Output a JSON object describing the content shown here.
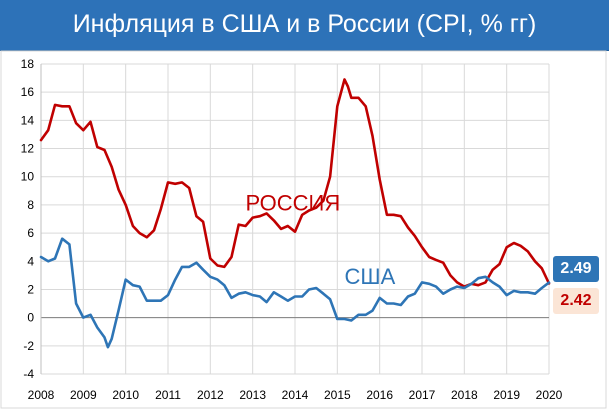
{
  "title": "Инфляция в США и в России (CPI, % гг)",
  "colors": {
    "russia": "#c00000",
    "usa": "#2e75b6",
    "title_bg": "#2d72b8",
    "grid": "#d9d9d9"
  },
  "chart_data": {
    "type": "line",
    "title": "Инфляция в США и в России (CPI, % гг)",
    "xlabel": "",
    "ylabel": "",
    "xlim": [
      2008,
      2020
    ],
    "ylim": [
      -4,
      18
    ],
    "x_ticks": [
      "2008",
      "2009",
      "2010",
      "2011",
      "2012",
      "2013",
      "2014",
      "2015",
      "2016",
      "2017",
      "2018",
      "2019",
      "2020"
    ],
    "y_ticks": [
      "-4",
      "-2",
      "0",
      "2",
      "4",
      "6",
      "8",
      "10",
      "12",
      "14",
      "16",
      "18"
    ],
    "grid": true,
    "series": [
      {
        "name": "РОССИЯ",
        "color": "#c00000",
        "x": [
          2008.0,
          2008.17,
          2008.33,
          2008.5,
          2008.67,
          2008.83,
          2009.0,
          2009.17,
          2009.33,
          2009.5,
          2009.67,
          2009.83,
          2010.0,
          2010.17,
          2010.33,
          2010.5,
          2010.67,
          2010.83,
          2011.0,
          2011.17,
          2011.33,
          2011.5,
          2011.67,
          2011.83,
          2012.0,
          2012.17,
          2012.33,
          2012.5,
          2012.67,
          2012.83,
          2013.0,
          2013.17,
          2013.33,
          2013.5,
          2013.67,
          2013.83,
          2014.0,
          2014.17,
          2014.33,
          2014.5,
          2014.67,
          2014.83,
          2015.0,
          2015.17,
          2015.25,
          2015.33,
          2015.5,
          2015.67,
          2015.83,
          2016.0,
          2016.17,
          2016.33,
          2016.5,
          2016.67,
          2016.83,
          2017.0,
          2017.17,
          2017.33,
          2017.5,
          2017.67,
          2017.83,
          2018.0,
          2018.17,
          2018.33,
          2018.5,
          2018.67,
          2018.83,
          2019.0,
          2019.17,
          2019.33,
          2019.5,
          2019.67,
          2019.83,
          2020.0
        ],
        "values": [
          12.6,
          13.3,
          15.1,
          15.0,
          15.0,
          13.8,
          13.3,
          13.9,
          12.1,
          11.9,
          10.7,
          9.1,
          8.0,
          6.5,
          6.0,
          5.7,
          6.2,
          7.7,
          9.6,
          9.5,
          9.6,
          9.2,
          7.2,
          6.8,
          4.2,
          3.7,
          3.6,
          4.3,
          6.6,
          6.5,
          7.1,
          7.2,
          7.4,
          6.9,
          6.3,
          6.5,
          6.1,
          7.3,
          7.6,
          7.8,
          8.3,
          10.0,
          15.0,
          16.9,
          16.4,
          15.6,
          15.6,
          15.0,
          12.9,
          9.8,
          7.3,
          7.3,
          7.2,
          6.4,
          5.8,
          5.0,
          4.3,
          4.1,
          3.9,
          3.0,
          2.5,
          2.2,
          2.4,
          2.3,
          2.5,
          3.4,
          3.8,
          5.0,
          5.3,
          5.1,
          4.7,
          4.0,
          3.5,
          2.42
        ]
      },
      {
        "name": "США",
        "color": "#2e75b6",
        "x": [
          2008.0,
          2008.17,
          2008.33,
          2008.5,
          2008.67,
          2008.83,
          2009.0,
          2009.17,
          2009.33,
          2009.5,
          2009.58,
          2009.67,
          2009.83,
          2010.0,
          2010.17,
          2010.33,
          2010.5,
          2010.67,
          2010.83,
          2011.0,
          2011.17,
          2011.33,
          2011.5,
          2011.67,
          2011.83,
          2012.0,
          2012.17,
          2012.33,
          2012.5,
          2012.67,
          2012.83,
          2013.0,
          2013.17,
          2013.33,
          2013.5,
          2013.67,
          2013.83,
          2014.0,
          2014.17,
          2014.33,
          2014.5,
          2014.67,
          2014.83,
          2015.0,
          2015.17,
          2015.33,
          2015.5,
          2015.67,
          2015.83,
          2016.0,
          2016.17,
          2016.33,
          2016.5,
          2016.67,
          2016.83,
          2017.0,
          2017.17,
          2017.33,
          2017.5,
          2017.67,
          2017.83,
          2018.0,
          2018.17,
          2018.33,
          2018.5,
          2018.67,
          2018.83,
          2019.0,
          2019.17,
          2019.33,
          2019.5,
          2019.67,
          2019.83,
          2020.0
        ],
        "values": [
          4.3,
          4.0,
          4.2,
          5.6,
          5.2,
          1.0,
          0.0,
          0.2,
          -0.7,
          -1.4,
          -2.1,
          -1.5,
          0.5,
          2.7,
          2.3,
          2.2,
          1.2,
          1.2,
          1.2,
          1.6,
          2.7,
          3.6,
          3.6,
          3.9,
          3.4,
          2.9,
          2.7,
          2.3,
          1.4,
          1.7,
          1.8,
          1.6,
          1.5,
          1.1,
          1.8,
          1.5,
          1.2,
          1.5,
          1.5,
          2.0,
          2.1,
          1.7,
          1.3,
          -0.1,
          -0.1,
          -0.2,
          0.2,
          0.2,
          0.5,
          1.4,
          1.0,
          1.0,
          0.9,
          1.5,
          1.7,
          2.5,
          2.4,
          2.2,
          1.7,
          2.0,
          2.2,
          2.1,
          2.4,
          2.8,
          2.9,
          2.5,
          2.2,
          1.6,
          1.9,
          1.8,
          1.8,
          1.7,
          2.1,
          2.49
        ]
      }
    ],
    "annotations": [
      {
        "text": "РОССИЯ",
        "series": "РОССИЯ"
      },
      {
        "text": "США",
        "series": "США"
      }
    ],
    "end_labels": [
      {
        "text": "2.49",
        "series": "США"
      },
      {
        "text": "2.42",
        "series": "РОССИЯ"
      }
    ]
  }
}
